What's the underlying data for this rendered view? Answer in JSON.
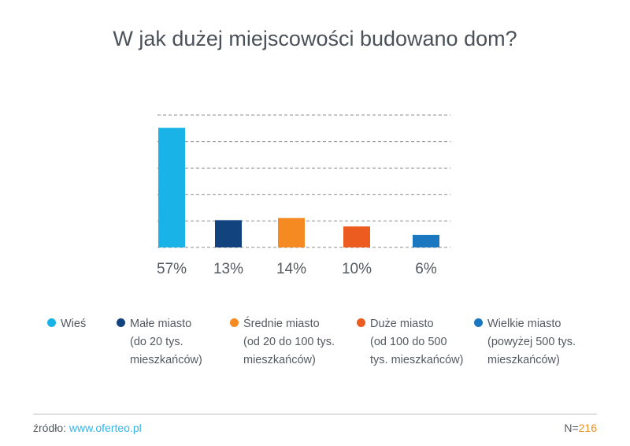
{
  "chart_data": {
    "type": "bar",
    "title": "W jak dużej miejscowości budowano dom?",
    "categories": [
      "Wieś",
      "Małe miasto (do 20 tys. mieszkańców)",
      "Średnie miasto (od 20 do 100 tys. mieszkańców)",
      "Duże miasto (od 100 do 500 tys. mieszkańców)",
      "Wielkie miasto (powyżej 500 tys. mieszkańców)"
    ],
    "values": [
      57,
      13,
      14,
      10,
      6
    ],
    "value_labels": [
      "57%",
      "13%",
      "14%",
      "10%",
      "6%"
    ],
    "colors": [
      "#19b3e8",
      "#12437f",
      "#f58a22",
      "#ec5b1f",
      "#1b78c0"
    ],
    "ylim": [
      0,
      62
    ],
    "grid": "dashed horizontal",
    "xlabel": "",
    "ylabel": "",
    "legend_position": "bottom",
    "legend": [
      {
        "lines": [
          "Wieś"
        ]
      },
      {
        "lines": [
          "Małe miasto",
          "(do 20 tys.",
          "mieszkańców)"
        ]
      },
      {
        "lines": [
          "Średnie miasto",
          "(od 20 do 100 tys.",
          "mieszkańców)"
        ]
      },
      {
        "lines": [
          "Duże miasto",
          "(od 100 do 500",
          "tys. mieszkańców)"
        ]
      },
      {
        "lines": [
          "Wielkie miasto",
          "(powyżej 500 tys.",
          "mieszkańców)"
        ]
      }
    ]
  },
  "footer": {
    "source_label": "źródło: ",
    "source_link": "www.oferteo.pl",
    "n_label": "N=",
    "n_value": "216"
  }
}
